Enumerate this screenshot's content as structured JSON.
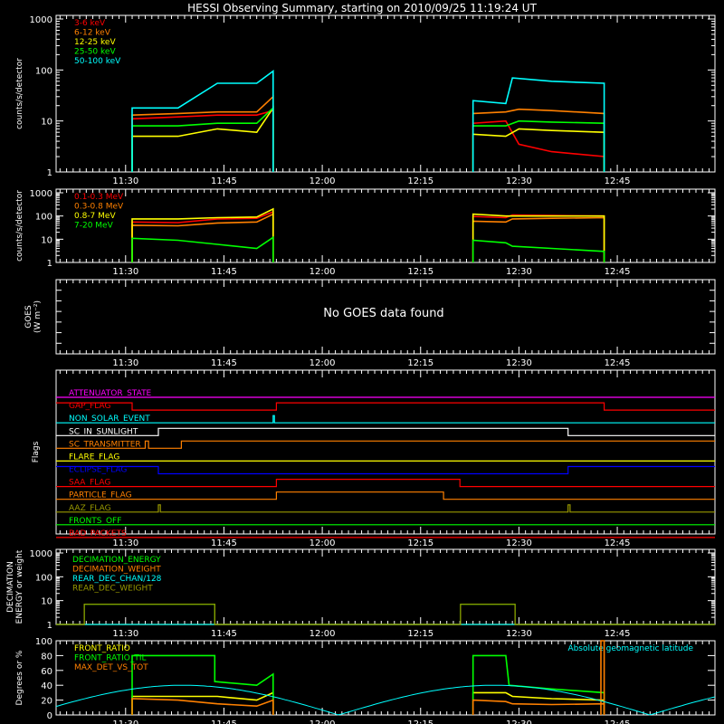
{
  "title": "HESSI Observing Summary, starting on 2010/09/25 11:19:24 UT",
  "time_ticks": [
    "11:30",
    "11:45",
    "12:00",
    "12:15",
    "12:30",
    "12:45"
  ],
  "colors": {
    "red": "#ff0000",
    "orange": "#ff8000",
    "yellow": "#ffff00",
    "green": "#00ff00",
    "cyan": "#00ffff",
    "magenta": "#ff00ff",
    "blue": "#0000ff",
    "olive": "#999900",
    "white": "#ffffff"
  },
  "chart_data": [
    {
      "type": "line",
      "id": "count_rates",
      "ylabel": "counts/s/detector",
      "yscale": "log",
      "ylim": [
        1,
        1000
      ],
      "y_ticks": [
        "1",
        "10",
        "100",
        "1000"
      ],
      "x_units": "UT time",
      "series": [
        {
          "name": "3-6 keV",
          "color": "#ff0000",
          "intervals": [
            {
              "x": [
                "11:31",
                "11:38",
                "11:44",
                "11:50",
                "11:52.5"
              ],
              "y": [
                11,
                12,
                13,
                13,
                16
              ]
            },
            {
              "x": [
                "12:23",
                "12:28",
                "12:30",
                "12:35",
                "12:43"
              ],
              "y": [
                9,
                10,
                3.5,
                2.5,
                2
              ]
            }
          ]
        },
        {
          "name": "6-12 keV",
          "color": "#ff8000",
          "intervals": [
            {
              "x": [
                "11:31",
                "11:38",
                "11:44",
                "11:50",
                "11:52.5"
              ],
              "y": [
                13,
                14,
                15,
                15,
                30
              ]
            },
            {
              "x": [
                "12:23",
                "12:28",
                "12:30",
                "12:35",
                "12:43"
              ],
              "y": [
                14,
                15,
                17,
                16,
                14
              ]
            }
          ]
        },
        {
          "name": "12-25 keV",
          "color": "#ffff00",
          "intervals": [
            {
              "x": [
                "11:31",
                "11:38",
                "11:44",
                "11:50",
                "11:52.5"
              ],
              "y": [
                5,
                5,
                7,
                6,
                18
              ]
            },
            {
              "x": [
                "12:23",
                "12:28",
                "12:30",
                "12:35",
                "12:43"
              ],
              "y": [
                5.5,
                5,
                7,
                6.5,
                6
              ]
            }
          ]
        },
        {
          "name": "25-50 keV",
          "color": "#00ff00",
          "intervals": [
            {
              "x": [
                "11:31",
                "11:38",
                "11:44",
                "11:50",
                "11:52.5"
              ],
              "y": [
                8,
                8,
                9,
                9,
                18
              ]
            },
            {
              "x": [
                "12:23",
                "12:28",
                "12:30",
                "12:35",
                "12:43"
              ],
              "y": [
                8,
                8,
                10,
                9.5,
                9
              ]
            }
          ]
        },
        {
          "name": "50-100 keV",
          "color": "#00ffff",
          "intervals": [
            {
              "x": [
                "11:31",
                "11:38",
                "11:44",
                "11:50",
                "11:52.5"
              ],
              "y": [
                18,
                18,
                55,
                55,
                95
              ]
            },
            {
              "x": [
                "12:23",
                "12:28",
                "12:29",
                "12:35",
                "12:43"
              ],
              "y": [
                25,
                22,
                70,
                60,
                55
              ]
            }
          ]
        }
      ]
    },
    {
      "type": "line",
      "id": "high_energy",
      "ylabel": "counts/s/detector",
      "yscale": "log",
      "ylim": [
        1,
        1000
      ],
      "y_ticks": [
        "1",
        "10",
        "100",
        "1000"
      ],
      "series": [
        {
          "name": "0.1-0.3 MeV",
          "color": "#ff0000",
          "intervals": [
            {
              "x": [
                "11:31",
                "11:38",
                "11:44",
                "11:50",
                "11:52.5"
              ],
              "y": [
                55,
                52,
                75,
                80,
                150
              ]
            },
            {
              "x": [
                "12:23",
                "12:28",
                "12:29",
                "12:35",
                "12:43"
              ],
              "y": [
                95,
                85,
                110,
                105,
                100
              ]
            }
          ]
        },
        {
          "name": "0.3-0.8 MeV",
          "color": "#ff8000",
          "intervals": [
            {
              "x": [
                "11:31",
                "11:38",
                "11:44",
                "11:50",
                "11:52.5"
              ],
              "y": [
                40,
                38,
                50,
                55,
                120
              ]
            },
            {
              "x": [
                "12:23",
                "12:28",
                "12:29",
                "12:35",
                "12:43"
              ],
              "y": [
                60,
                55,
                75,
                80,
                85
              ]
            }
          ]
        },
        {
          "name": "0.8-7 MeV",
          "color": "#ffff00",
          "intervals": [
            {
              "x": [
                "11:31",
                "11:38",
                "11:44",
                "11:50",
                "11:52.5"
              ],
              "y": [
                75,
                75,
                85,
                90,
                200
              ]
            },
            {
              "x": [
                "12:23",
                "12:28",
                "12:29",
                "12:35",
                "12:43"
              ],
              "y": [
                120,
                100,
                100,
                100,
                100
              ]
            }
          ]
        },
        {
          "name": "7-20 MeV",
          "color": "#00ff00",
          "intervals": [
            {
              "x": [
                "11:31",
                "11:38",
                "11:44",
                "11:50",
                "11:52.5"
              ],
              "y": [
                11,
                9,
                6,
                4,
                12
              ]
            },
            {
              "x": [
                "12:23",
                "12:28",
                "12:29",
                "12:35",
                "12:43"
              ],
              "y": [
                9,
                7,
                5,
                4,
                3
              ]
            }
          ]
        }
      ]
    },
    {
      "type": "line",
      "id": "goes",
      "ylabel": "GOES",
      "yunits": "(W m⁻²)",
      "message": "No GOES data found",
      "series": []
    },
    {
      "type": "line",
      "id": "flags",
      "ylabel": "Flags",
      "series": [
        {
          "name": "ATTENUATOR_STATE",
          "color": "#ff00ff",
          "points": [
            [
              "11:19.4",
              0
            ],
            [
              "12:59.9",
              0
            ]
          ]
        },
        {
          "name": "GAP_FLAG",
          "color": "#ff0000",
          "points": [
            [
              "11:19.4",
              1
            ],
            [
              "11:31",
              1
            ],
            [
              "11:31",
              0
            ],
            [
              "11:53",
              0
            ],
            [
              "11:53",
              1
            ],
            [
              "12:43",
              1
            ],
            [
              "12:43",
              0
            ],
            [
              "12:59.9",
              0
            ]
          ]
        },
        {
          "name": "NON_SOLAR_EVENT",
          "color": "#00ffff",
          "points": [
            [
              "11:19.4",
              0
            ],
            [
              "11:52.5",
              0
            ],
            [
              "11:52.5",
              1
            ],
            [
              "11:52.7",
              1
            ],
            [
              "11:52.7",
              0
            ],
            [
              "12:59.9",
              0
            ]
          ]
        },
        {
          "name": "SC_IN_SUNLIGHT",
          "color": "#ffffff",
          "points": [
            [
              "11:19.4",
              0
            ],
            [
              "11:35",
              0
            ],
            [
              "11:35",
              1
            ],
            [
              "12:37.5",
              1
            ],
            [
              "12:37.5",
              0
            ],
            [
              "12:59.9",
              0
            ]
          ]
        },
        {
          "name": "SC_TRANSMITTER",
          "color": "#ff8000",
          "points": [
            [
              "11:19.4",
              0
            ],
            [
              "11:33",
              0
            ],
            [
              "11:33",
              1
            ],
            [
              "11:33.5",
              1
            ],
            [
              "11:33.5",
              0
            ],
            [
              "11:38.5",
              0
            ],
            [
              "11:38.5",
              1
            ],
            [
              "12:59.9",
              1
            ]
          ]
        },
        {
          "name": "FLARE_FLAG",
          "color": "#ffff00",
          "points": [
            [
              "11:19.4",
              0
            ],
            [
              "12:59.9",
              0
            ]
          ]
        },
        {
          "name": "ECLIPSE_FLAG",
          "color": "#0000ff",
          "points": [
            [
              "11:19.4",
              1
            ],
            [
              "11:35",
              1
            ],
            [
              "11:35",
              0
            ],
            [
              "12:37.5",
              0
            ],
            [
              "12:37.5",
              1
            ],
            [
              "12:59.9",
              1
            ]
          ]
        },
        {
          "name": "SAA_FLAG",
          "color": "#ff0000",
          "points": [
            [
              "11:19.4",
              0
            ],
            [
              "11:53",
              0
            ],
            [
              "11:53",
              1
            ],
            [
              "12:21",
              1
            ],
            [
              "12:21",
              0
            ],
            [
              "12:59.9",
              0
            ]
          ]
        },
        {
          "name": "PARTICLE_FLAG",
          "color": "#ff8000",
          "points": [
            [
              "11:19.4",
              0
            ],
            [
              "11:53",
              0
            ],
            [
              "11:53",
              1
            ],
            [
              "12:18.5",
              1
            ],
            [
              "12:18.5",
              0
            ],
            [
              "12:59.9",
              0
            ]
          ]
        },
        {
          "name": "AAZ_FLAG",
          "color": "#999900",
          "points": [
            [
              "11:19.4",
              0
            ],
            [
              "11:35",
              0
            ],
            [
              "11:35",
              1
            ],
            [
              "11:35.3",
              1
            ],
            [
              "11:35.3",
              0
            ],
            [
              "12:37.5",
              0
            ],
            [
              "12:37.5",
              1
            ],
            [
              "12:37.8",
              1
            ],
            [
              "12:37.8",
              0
            ],
            [
              "12:59.9",
              0
            ]
          ]
        },
        {
          "name": "FRONTS_OFF",
          "color": "#00ff00",
          "points": [
            [
              "11:19.4",
              0
            ],
            [
              "12:59.9",
              0
            ]
          ]
        },
        {
          "name": "BAD_PACKETS",
          "color": "#ff0000",
          "points": [
            [
              "11:19.4",
              0
            ],
            [
              "12:59.9",
              0
            ]
          ]
        }
      ]
    },
    {
      "type": "line",
      "id": "decimation",
      "ylabel": "DECIMATION ENERGY or weight",
      "yscale": "log",
      "ylim": [
        1,
        1000
      ],
      "y_ticks": [
        "1",
        "10",
        "100",
        "1000"
      ],
      "series": [
        {
          "name": "DECIMATION_ENERGY",
          "color": "#00ff00",
          "points": [
            [
              "11:19.4",
              1
            ],
            [
              "11:23.7",
              1
            ],
            [
              "11:23.7",
              7
            ],
            [
              "11:43.6",
              7
            ],
            [
              "11:43.6",
              1
            ],
            [
              "12:21.1",
              1
            ],
            [
              "12:21.1",
              7
            ],
            [
              "12:29.4",
              7
            ],
            [
              "12:29.4",
              1
            ],
            [
              "12:59.9",
              1
            ]
          ]
        },
        {
          "name": "DECIMATION_WEIGHT",
          "color": "#ff8000",
          "points": [
            [
              "11:19.4",
              1
            ],
            [
              "12:59.9",
              1
            ]
          ]
        },
        {
          "name": "REAR_DEC_CHAN/128",
          "color": "#00ffff",
          "points": [
            [
              "11:19.4",
              1
            ],
            [
              "12:59.9",
              1
            ]
          ]
        },
        {
          "name": "REAR_DEC_WEIGHT",
          "color": "#999900",
          "points": [
            [
              "11:19.4",
              1
            ],
            [
              "11:23.7",
              1
            ],
            [
              "11:23.7",
              7
            ],
            [
              "11:43.6",
              7
            ],
            [
              "11:43.6",
              1
            ],
            [
              "12:21.1",
              1
            ],
            [
              "12:21.1",
              7
            ],
            [
              "12:29.4",
              7
            ],
            [
              "12:29.4",
              1
            ],
            [
              "12:59.9",
              1
            ]
          ]
        }
      ]
    },
    {
      "type": "line",
      "id": "ratios",
      "ylabel": "Degrees or %",
      "ylim": [
        0,
        100
      ],
      "y_ticks": [
        "0",
        "20",
        "40",
        "60",
        "80",
        "100"
      ],
      "annotation": "Absolute geomagnetic latitude",
      "series": [
        {
          "name": "FRONT_RATIO",
          "color": "#ffff00",
          "intervals": [
            {
              "x": [
                "11:31",
                "11:38",
                "11:44",
                "11:50",
                "11:52.5"
              ],
              "y": [
                25,
                25,
                25,
                20,
                30
              ]
            },
            {
              "x": [
                "12:23",
                "12:28",
                "12:29",
                "12:35",
                "12:43"
              ],
              "y": [
                30,
                30,
                25,
                22,
                20
              ]
            }
          ]
        },
        {
          "name": "FRONT_RATIO_TIL",
          "color": "#00ff00",
          "intervals": [
            {
              "x": [
                "11:31",
                "11:38",
                "11:43.6",
                "11:43.6",
                "11:50",
                "11:52.5"
              ],
              "y": [
                80,
                80,
                80,
                45,
                40,
                55
              ]
            },
            {
              "x": [
                "12:23",
                "12:28",
                "12:28.5",
                "12:35",
                "12:43"
              ],
              "y": [
                80,
                80,
                40,
                35,
                30
              ]
            }
          ]
        },
        {
          "name": "MAX_DET_VS_TOT",
          "color": "#ff8000",
          "intervals": [
            {
              "x": [
                "11:31",
                "11:38",
                "11:44",
                "11:50",
                "11:52.5"
              ],
              "y": [
                22,
                20,
                15,
                12,
                20
              ]
            },
            {
              "x": [
                "12:23",
                "12:28",
                "12:29",
                "12:35",
                "12:43"
              ],
              "y": [
                20,
                18,
                15,
                14,
                15
              ]
            },
            {
              "x": [
                "12:42.5",
                "12:42.5",
                "12:43",
                "12:43"
              ],
              "y": [
                0,
                100,
                100,
                0
              ]
            }
          ]
        },
        {
          "name": "Absolute geomagnetic latitude",
          "color": "#00ffff",
          "curve": {
            "amplitude": 40,
            "period_min": 47.5,
            "zero_at": "12:02.5"
          }
        }
      ]
    }
  ]
}
